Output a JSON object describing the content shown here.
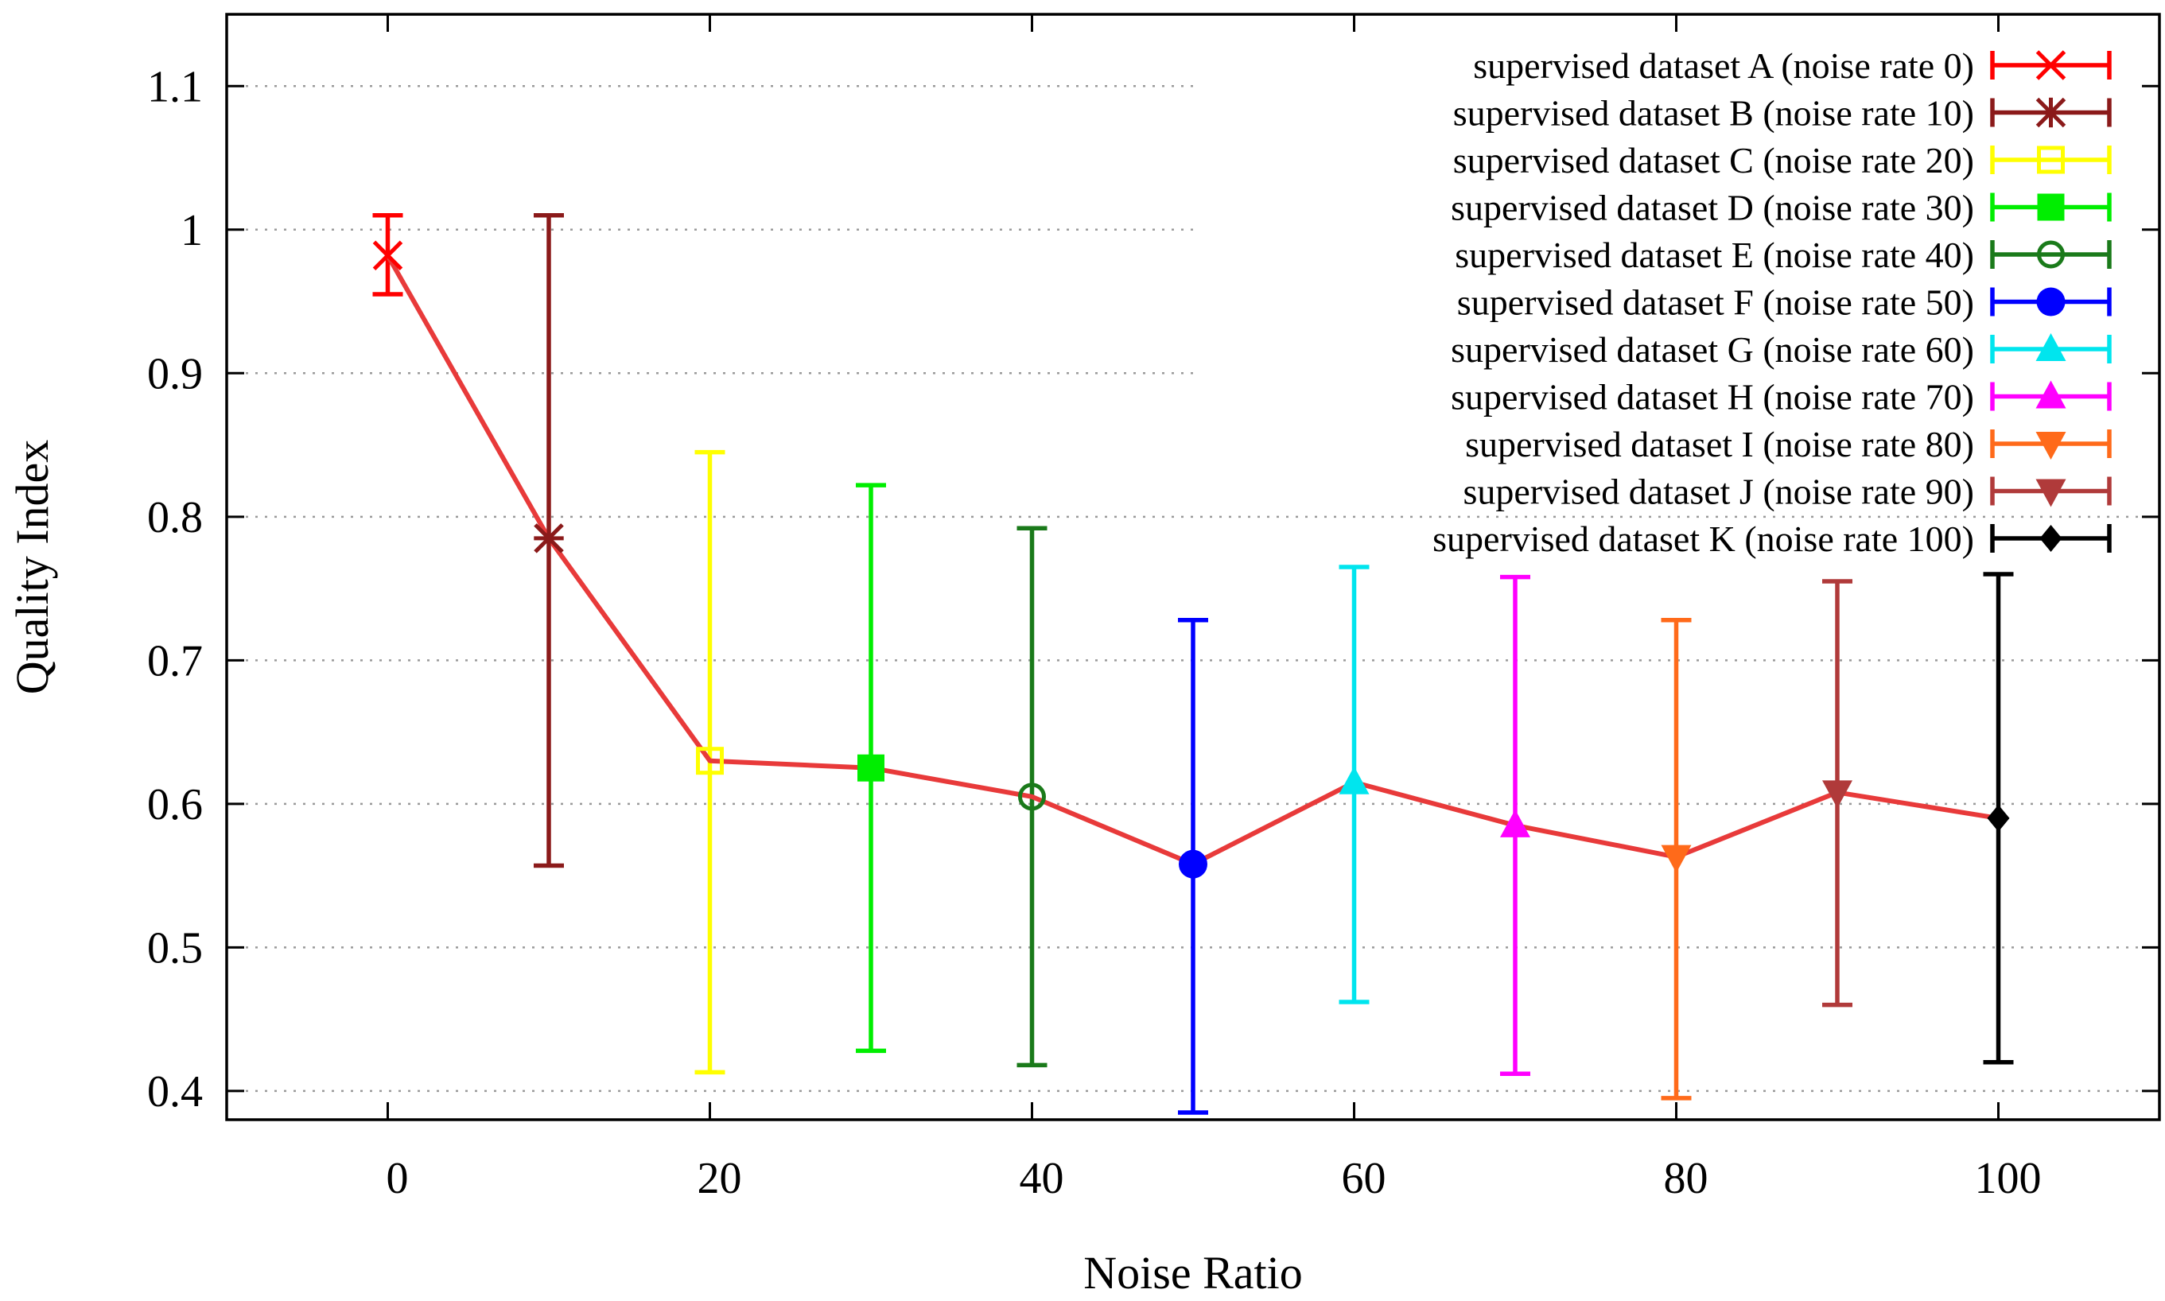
{
  "chart_data": {
    "type": "line",
    "xlabel": "Noise Ratio",
    "ylabel": "Quality Index",
    "xlim": [
      -10,
      110
    ],
    "ylim": [
      0.38,
      1.15
    ],
    "x_ticks": [
      0,
      20,
      40,
      60,
      80,
      100
    ],
    "x_tick_labels": [
      "0",
      "20",
      "40",
      "60",
      "80",
      "100"
    ],
    "y_ticks": [
      0.4,
      0.5,
      0.6,
      0.7,
      0.8,
      0.9,
      1.0,
      1.1
    ],
    "y_tick_labels": [
      "0.4",
      "0.5",
      "0.6",
      "0.7",
      "0.8",
      "0.9",
      "1",
      "1.1"
    ],
    "grid": "horizontal dotted",
    "legend_position": "top-right",
    "trend_line": {
      "color": "#e83a3a",
      "x": [
        0,
        10,
        20,
        30,
        40,
        50,
        60,
        70,
        80,
        90,
        100
      ],
      "y": [
        0.982,
        0.785,
        0.63,
        0.625,
        0.605,
        0.558,
        0.615,
        0.585,
        0.563,
        0.608,
        0.59
      ]
    },
    "series": [
      {
        "name": "supervised dataset A (noise rate 0)",
        "x": 0,
        "y": 0.982,
        "err_low": 0.955,
        "err_high": 1.01,
        "color": "#ff0000",
        "marker": "x"
      },
      {
        "name": "supervised dataset B (noise rate 10)",
        "x": 10,
        "y": 0.785,
        "err_low": 0.557,
        "err_high": 1.01,
        "color": "#8b1a1a",
        "marker": "star"
      },
      {
        "name": "supervised dataset C (noise rate 20)",
        "x": 20,
        "y": 0.63,
        "err_low": 0.413,
        "err_high": 0.845,
        "color": "#ffff00",
        "marker": "square-open"
      },
      {
        "name": "supervised dataset D (noise rate 30)",
        "x": 30,
        "y": 0.625,
        "err_low": 0.428,
        "err_high": 0.822,
        "color": "#00ee00",
        "marker": "square"
      },
      {
        "name": "supervised dataset E (noise rate 40)",
        "x": 40,
        "y": 0.605,
        "err_low": 0.418,
        "err_high": 0.792,
        "color": "#1a7a1a",
        "marker": "circle-open"
      },
      {
        "name": "supervised dataset F (noise rate 50)",
        "x": 50,
        "y": 0.558,
        "err_low": 0.385,
        "err_high": 0.728,
        "color": "#0000ff",
        "marker": "circle"
      },
      {
        "name": "supervised dataset G (noise rate 60)",
        "x": 60,
        "y": 0.615,
        "err_low": 0.462,
        "err_high": 0.765,
        "color": "#00e5ee",
        "marker": "triangle"
      },
      {
        "name": "supervised dataset H (noise rate 70)",
        "x": 70,
        "y": 0.585,
        "err_low": 0.412,
        "err_high": 0.758,
        "color": "#ff00ff",
        "marker": "triangle"
      },
      {
        "name": "supervised dataset I (noise rate 80)",
        "x": 80,
        "y": 0.563,
        "err_low": 0.395,
        "err_high": 0.728,
        "color": "#ff6a1a",
        "marker": "triangle-down"
      },
      {
        "name": "supervised dataset J (noise rate 90)",
        "x": 90,
        "y": 0.608,
        "err_low": 0.46,
        "err_high": 0.755,
        "color": "#b03a3a",
        "marker": "triangle-down"
      },
      {
        "name": "supervised dataset K (noise rate 100)",
        "x": 100,
        "y": 0.59,
        "err_low": 0.42,
        "err_high": 0.76,
        "color": "#000000",
        "marker": "diamond"
      }
    ]
  }
}
